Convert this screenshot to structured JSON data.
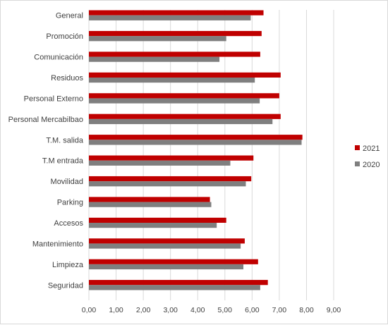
{
  "chart_data": {
    "type": "bar",
    "orientation": "horizontal",
    "categories": [
      "General",
      "Promoción",
      "Comunicación",
      "Residuos",
      "Personal Externo",
      "Personal Mercabilbao",
      "T.M. salida",
      "T.M entrada",
      "Movilidad",
      "Parking",
      "Accesos",
      "Mantenimiento",
      "Limpieza",
      "Seguridad"
    ],
    "series": [
      {
        "name": "2021",
        "color": "#c00000",
        "values": [
          6.42,
          6.35,
          6.3,
          7.05,
          7.0,
          7.05,
          7.85,
          6.05,
          5.97,
          4.45,
          5.05,
          5.73,
          6.22,
          6.58
        ]
      },
      {
        "name": "2020",
        "color": "#7f7f7f",
        "values": [
          5.95,
          5.05,
          4.8,
          6.1,
          6.28,
          6.75,
          7.82,
          5.2,
          5.77,
          4.5,
          4.7,
          5.58,
          5.68,
          6.3
        ]
      }
    ],
    "xlim": [
      0,
      9
    ],
    "xticks": [
      "0,00",
      "1,00",
      "2,00",
      "3,00",
      "4,00",
      "5,00",
      "6,00",
      "7,00",
      "8,00",
      "9,00"
    ],
    "grid": true,
    "legend_position": "right"
  }
}
